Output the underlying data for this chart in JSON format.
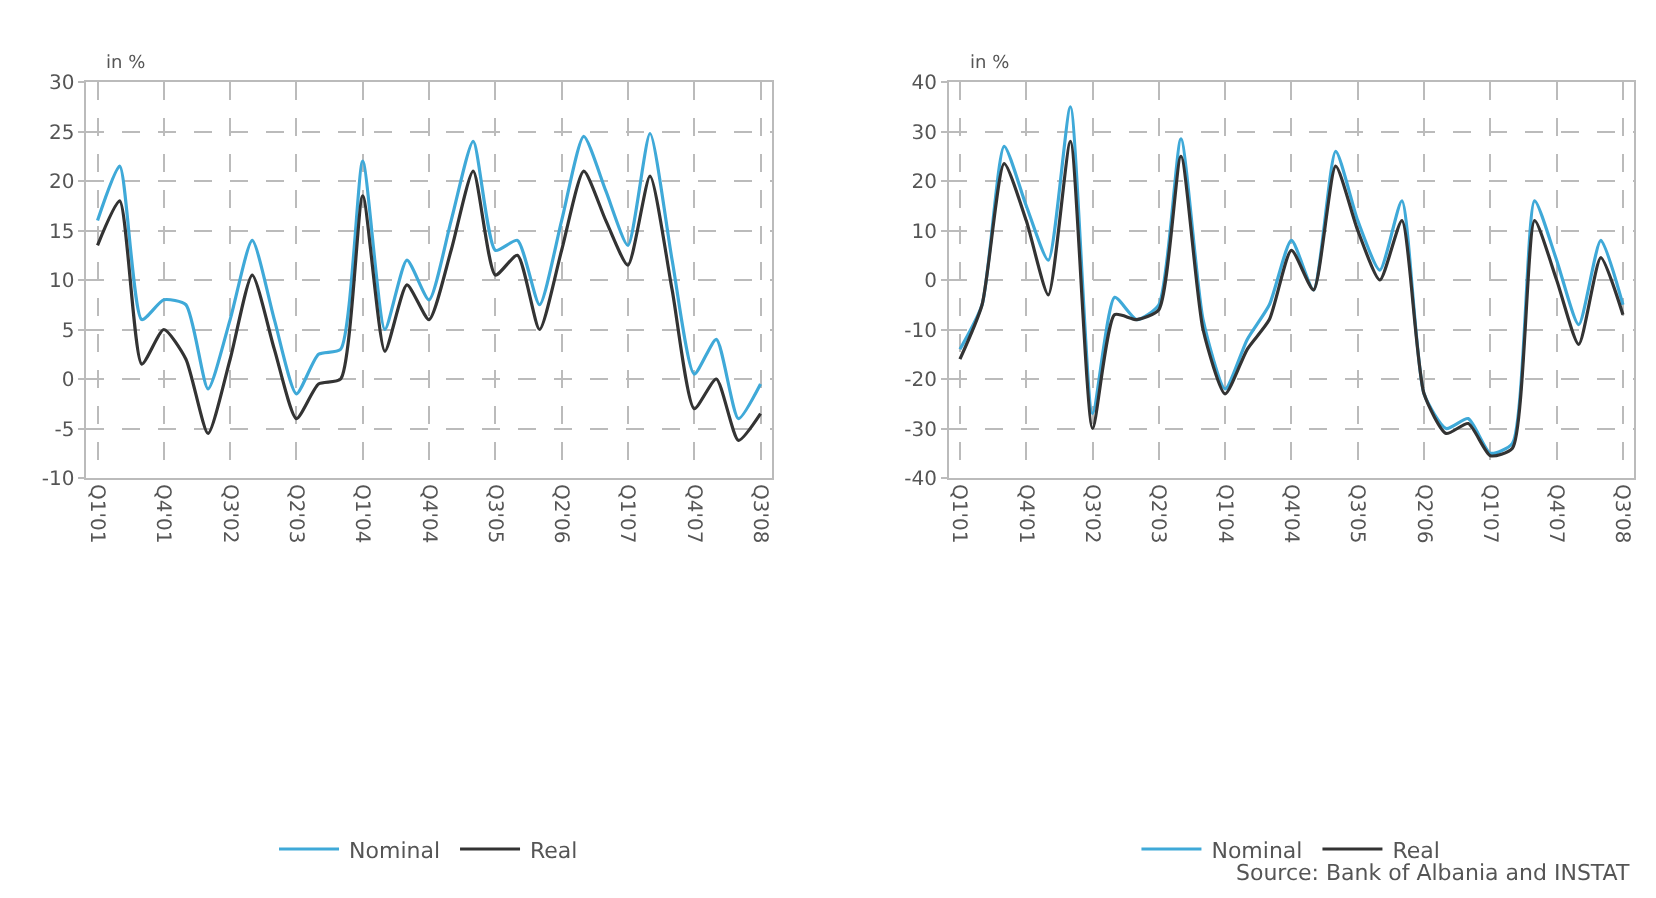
{
  "chart_data": [
    {
      "type": "line",
      "ylabel": "in %",
      "ylim": [
        -10,
        30
      ],
      "yticks": [
        -10,
        -5,
        0,
        5,
        10,
        15,
        20,
        25,
        30
      ],
      "categories": [
        "Q1'01",
        null,
        null,
        "Q4'01",
        null,
        null,
        "Q3'02",
        null,
        null,
        "Q2'03",
        null,
        null,
        "Q1'04",
        null,
        null,
        "Q4'04",
        null,
        null,
        "Q3'05",
        null,
        null,
        "Q2'06",
        null,
        null,
        "Q1'07",
        null,
        null,
        "Q4'07",
        null,
        null,
        "Q3'08"
      ],
      "grid": true,
      "legend": "bottom",
      "line_style": "solid",
      "series": [
        {
          "name": "Nominal",
          "color": "#3fa9d8",
          "values": [
            16,
            21.5,
            6,
            8,
            7.5,
            -1,
            6,
            14,
            6,
            -1.5,
            2.5,
            3,
            22,
            5,
            12,
            8,
            16,
            24,
            13,
            14,
            7.5,
            16,
            24.5,
            19,
            13.5,
            24.8,
            12,
            0.5,
            4,
            -4,
            -0.5
          ]
        },
        {
          "name": "Real",
          "color": "#333333",
          "values": [
            13.5,
            18,
            1.5,
            5,
            2,
            -5.5,
            2,
            10.5,
            3,
            -4,
            -0.5,
            0,
            18.5,
            2.8,
            9.5,
            6,
            13,
            21,
            10.5,
            12.5,
            5,
            13,
            21,
            16,
            11.5,
            20.5,
            9,
            -3,
            0,
            -6.2,
            -3.5
          ]
        }
      ]
    },
    {
      "type": "line",
      "ylabel": "in %",
      "ylim": [
        -40,
        40
      ],
      "yticks": [
        -40,
        -30,
        -20,
        -10,
        0,
        10,
        20,
        30,
        40
      ],
      "categories": [
        "Q1'01",
        null,
        null,
        "Q4'01",
        null,
        null,
        "Q3'02",
        null,
        null,
        "Q2'03",
        null,
        null,
        "Q1'04",
        null,
        null,
        "Q4'04",
        null,
        null,
        "Q3'05",
        null,
        null,
        "Q2'06",
        null,
        null,
        "Q1'07",
        null,
        null,
        "Q4'07",
        null,
        null,
        "Q3'08"
      ],
      "grid": true,
      "legend": "bottom",
      "line_style": "solid",
      "annotations": [
        "Source: Bank of Albania and INSTAT"
      ],
      "series": [
        {
          "name": "Nominal",
          "color": "#3fa9d8",
          "values": [
            -14,
            -5,
            27,
            15,
            4,
            35,
            -27,
            -3.5,
            -8,
            -5,
            28.5,
            -8,
            -22,
            -12,
            -5,
            8,
            -2,
            26,
            12,
            2,
            16,
            -23,
            -30,
            -28,
            -35,
            -33,
            16,
            4,
            -9,
            8,
            -5
          ]
        },
        {
          "name": "Real",
          "color": "#333333",
          "values": [
            -16,
            -5,
            23.5,
            12,
            -3,
            28,
            -30,
            -7,
            -8,
            -6,
            25,
            -10,
            -23,
            -14,
            -8,
            6,
            -2,
            23,
            10,
            0,
            12,
            -23,
            -31,
            -29,
            -35.5,
            -34,
            12,
            0,
            -13,
            4.5,
            -7
          ]
        }
      ]
    }
  ]
}
